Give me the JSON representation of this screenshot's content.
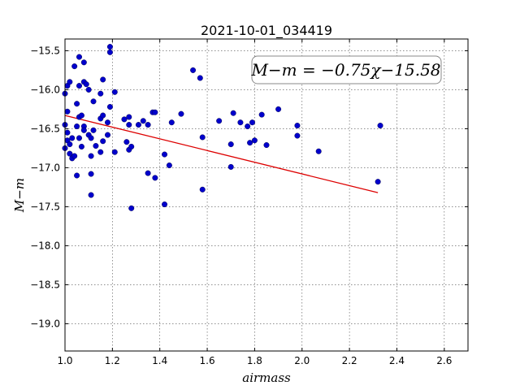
{
  "chart_data": {
    "type": "scatter",
    "title": "2021-10-01_034419",
    "xlabel": "airmass",
    "ylabel": "M−m",
    "xlim": [
      1.0,
      2.7
    ],
    "ylim": [
      -19.35,
      -15.35
    ],
    "y_inverted": true,
    "grid": true,
    "xticks": [
      1.0,
      1.2,
      1.4,
      1.6,
      1.8,
      2.0,
      2.2,
      2.4,
      2.6
    ],
    "xtick_labels": [
      "1.0",
      "1.2",
      "1.4",
      "1.6",
      "1.8",
      "2.0",
      "2.2",
      "2.4",
      "2.6"
    ],
    "yticks": [
      -15.5,
      -16.0,
      -16.5,
      -17.0,
      -17.5,
      -18.0,
      -18.5,
      -19.0
    ],
    "ytick_labels": [
      "−15.5",
      "−16.0",
      "−16.5",
      "−17.0",
      "−17.5",
      "−18.0",
      "−18.5",
      "−19.0"
    ],
    "annotation": "M−m = −0.75χ−15.58",
    "annotation_placement": "top-right",
    "point_color": "#0000cc",
    "fit_color": "#dd0000",
    "fit_line": {
      "slope": -0.75,
      "intercept": -15.58,
      "x_range": [
        1.0,
        2.32
      ]
    },
    "points": [
      [
        1.0,
        -16.45
      ],
      [
        1.0,
        -16.05
      ],
      [
        1.0,
        -16.75
      ],
      [
        1.01,
        -15.95
      ],
      [
        1.01,
        -16.28
      ],
      [
        1.01,
        -16.55
      ],
      [
        1.01,
        -16.65
      ],
      [
        1.02,
        -15.9
      ],
      [
        1.02,
        -16.7
      ],
      [
        1.02,
        -16.82
      ],
      [
        1.03,
        -16.88
      ],
      [
        1.03,
        -16.62
      ],
      [
        1.04,
        -15.7
      ],
      [
        1.04,
        -16.85
      ],
      [
        1.05,
        -16.18
      ],
      [
        1.05,
        -16.47
      ],
      [
        1.05,
        -17.1
      ],
      [
        1.06,
        -15.58
      ],
      [
        1.06,
        -15.95
      ],
      [
        1.06,
        -16.35
      ],
      [
        1.06,
        -16.62
      ],
      [
        1.07,
        -16.73
      ],
      [
        1.07,
        -16.33
      ],
      [
        1.08,
        -15.65
      ],
      [
        1.08,
        -15.9
      ],
      [
        1.08,
        -16.47
      ],
      [
        1.08,
        -16.52
      ],
      [
        1.09,
        -15.93
      ],
      [
        1.1,
        -16.58
      ],
      [
        1.1,
        -16.0
      ],
      [
        1.11,
        -16.62
      ],
      [
        1.11,
        -16.85
      ],
      [
        1.11,
        -17.08
      ],
      [
        1.11,
        -17.35
      ],
      [
        1.12,
        -16.15
      ],
      [
        1.12,
        -16.52
      ],
      [
        1.13,
        -16.72
      ],
      [
        1.15,
        -16.37
      ],
      [
        1.15,
        -16.05
      ],
      [
        1.15,
        -16.8
      ],
      [
        1.16,
        -15.87
      ],
      [
        1.16,
        -16.33
      ],
      [
        1.16,
        -16.66
      ],
      [
        1.18,
        -16.58
      ],
      [
        1.18,
        -16.42
      ],
      [
        1.19,
        -15.45
      ],
      [
        1.19,
        -15.52
      ],
      [
        1.19,
        -16.22
      ],
      [
        1.21,
        -16.03
      ],
      [
        1.21,
        -16.8
      ],
      [
        1.25,
        -16.38
      ],
      [
        1.26,
        -16.67
      ],
      [
        1.27,
        -16.35
      ],
      [
        1.27,
        -16.77
      ],
      [
        1.27,
        -16.45
      ],
      [
        1.28,
        -16.73
      ],
      [
        1.28,
        -17.52
      ],
      [
        1.31,
        -16.45
      ],
      [
        1.33,
        -16.4
      ],
      [
        1.35,
        -16.45
      ],
      [
        1.35,
        -17.07
      ],
      [
        1.37,
        -16.29
      ],
      [
        1.38,
        -16.29
      ],
      [
        1.38,
        -17.13
      ],
      [
        1.42,
        -16.83
      ],
      [
        1.42,
        -17.47
      ],
      [
        1.44,
        -16.97
      ],
      [
        1.45,
        -16.42
      ],
      [
        1.49,
        -16.31
      ],
      [
        1.54,
        -15.75
      ],
      [
        1.57,
        -15.85
      ],
      [
        1.58,
        -16.61
      ],
      [
        1.58,
        -17.28
      ],
      [
        1.65,
        -16.4
      ],
      [
        1.7,
        -16.7
      ],
      [
        1.7,
        -16.99
      ],
      [
        1.71,
        -16.3
      ],
      [
        1.74,
        -16.42
      ],
      [
        1.77,
        -16.47
      ],
      [
        1.78,
        -16.68
      ],
      [
        1.79,
        -16.42
      ],
      [
        1.8,
        -16.65
      ],
      [
        1.83,
        -16.32
      ],
      [
        1.85,
        -16.71
      ],
      [
        1.9,
        -16.25
      ],
      [
        1.98,
        -16.46
      ],
      [
        1.98,
        -16.59
      ],
      [
        2.07,
        -16.79
      ],
      [
        2.32,
        -17.18
      ],
      [
        2.33,
        -16.46
      ]
    ]
  }
}
